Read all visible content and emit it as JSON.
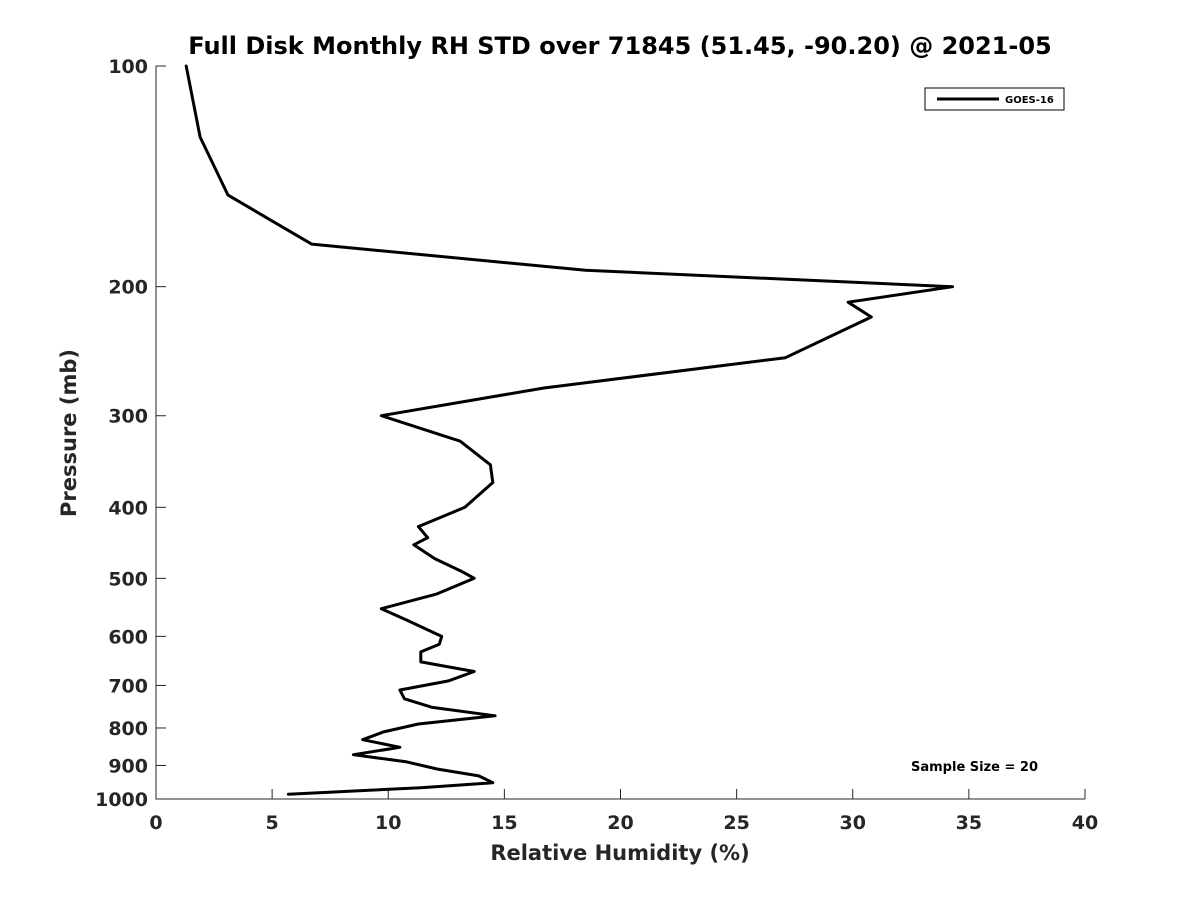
{
  "chart_data": {
    "type": "line",
    "title": "Full Disk Monthly RH STD over 71845 (51.45, -90.20) @ 2021-05",
    "xlabel": "Relative Humidity (%)",
    "ylabel": "Pressure (mb)",
    "xlim": [
      0,
      40
    ],
    "ylim": [
      100,
      1000
    ],
    "y_scale": "log",
    "y_reversed": true,
    "x_ticks": [
      "0",
      "5",
      "10",
      "15",
      "20",
      "25",
      "30",
      "35",
      "40"
    ],
    "y_ticks": [
      "100",
      "200",
      "300",
      "400",
      "500",
      "600",
      "700",
      "800",
      "900",
      "1000"
    ],
    "grid": false,
    "legend_position": "top-right",
    "annotation": "Sample Size = 20",
    "series": [
      {
        "name": "GOES-16",
        "color": "#000000",
        "x": [
          1.3,
          1.9,
          3.1,
          6.7,
          18.5,
          34.3,
          29.8,
          30.8,
          27.1,
          16.7,
          9.7,
          13.1,
          14.4,
          14.5,
          13.3,
          11.3,
          11.7,
          11.1,
          12.0,
          13.2,
          13.7,
          12.1,
          9.7,
          10.8,
          12.3,
          12.2,
          11.4,
          11.4,
          13.7,
          12.6,
          10.5,
          10.7,
          11.9,
          14.6,
          11.3,
          9.8,
          8.9,
          10.5,
          8.5,
          10.8,
          12.1,
          13.9,
          14.5,
          11.4,
          5.7
        ],
        "y": [
          100,
          125,
          150,
          175,
          190,
          200,
          210,
          220,
          250,
          275,
          300,
          325,
          350,
          370,
          400,
          425,
          440,
          450,
          470,
          490,
          500,
          525,
          550,
          570,
          600,
          615,
          630,
          650,
          670,
          690,
          710,
          730,
          750,
          770,
          790,
          810,
          830,
          850,
          870,
          890,
          910,
          930,
          950,
          965,
          985
        ]
      }
    ]
  }
}
